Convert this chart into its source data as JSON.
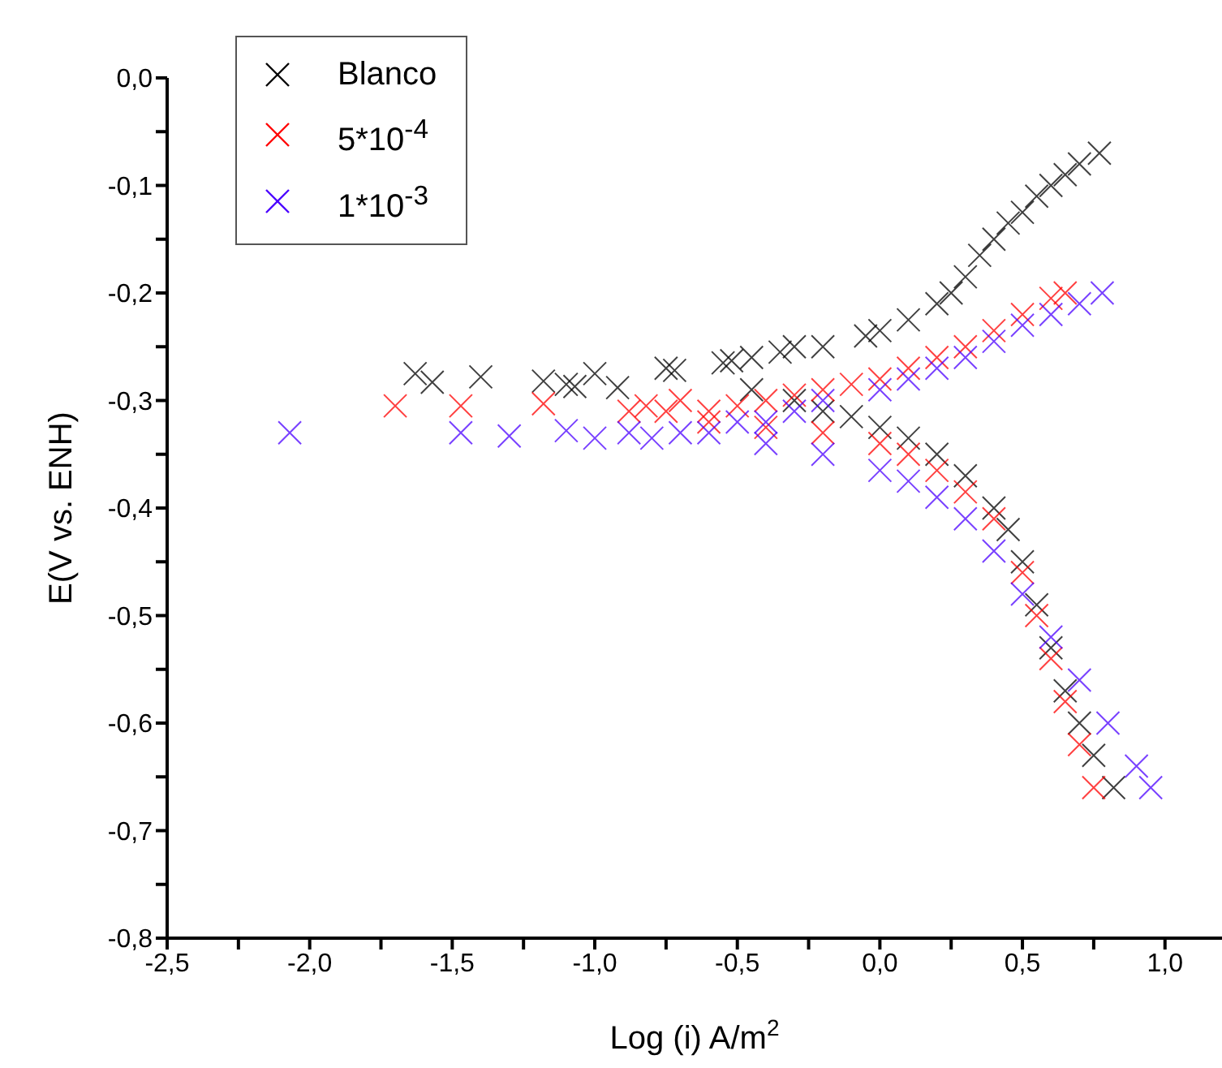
{
  "chart_data": {
    "type": "scatter",
    "xlabel": "Log (i) A/m$^{2}$",
    "ylabel": "E(V vs. ENH)",
    "xlim": [
      -2.5,
      1.2
    ],
    "ylim": [
      -0.8,
      0.0
    ],
    "xticks": [
      {
        "value": -2.5,
        "label": "-2,5"
      },
      {
        "value": -2.25,
        "label": null
      },
      {
        "value": -2.0,
        "label": "-2,0"
      },
      {
        "value": -1.75,
        "label": null
      },
      {
        "value": -1.5,
        "label": "-1,5"
      },
      {
        "value": -1.25,
        "label": null
      },
      {
        "value": -1.0,
        "label": "-1,0"
      },
      {
        "value": -0.75,
        "label": null
      },
      {
        "value": -0.5,
        "label": "-0,5"
      },
      {
        "value": -0.25,
        "label": null
      },
      {
        "value": 0.0,
        "label": "0,0"
      },
      {
        "value": 0.25,
        "label": null
      },
      {
        "value": 0.5,
        "label": "0,5"
      },
      {
        "value": 0.75,
        "label": null
      },
      {
        "value": 1.0,
        "label": "1,0"
      }
    ],
    "yticks": [
      {
        "value": -0.8,
        "label": "-0,8"
      },
      {
        "value": -0.75,
        "label": null
      },
      {
        "value": -0.7,
        "label": "-0,7"
      },
      {
        "value": -0.65,
        "label": null
      },
      {
        "value": -0.6,
        "label": "-0,6"
      },
      {
        "value": -0.55,
        "label": null
      },
      {
        "value": -0.5,
        "label": "-0,5"
      },
      {
        "value": -0.45,
        "label": null
      },
      {
        "value": -0.4,
        "label": "-0,4"
      },
      {
        "value": -0.35,
        "label": null
      },
      {
        "value": -0.3,
        "label": "-0,3"
      },
      {
        "value": -0.25,
        "label": null
      },
      {
        "value": -0.2,
        "label": "-0,2"
      },
      {
        "value": -0.15,
        "label": null
      },
      {
        "value": -0.1,
        "label": "-0,1"
      },
      {
        "value": -0.05,
        "label": null
      },
      {
        "value": 0.0,
        "label": "0,0"
      }
    ],
    "grid": false,
    "legend": "top left",
    "marker": "cross",
    "series": [
      {
        "name": "Blanco",
        "color": "#000000",
        "x": [
          -1.63,
          -1.57,
          -1.4,
          -1.18,
          -1.1,
          -1.07,
          -1.0,
          -0.92,
          -0.75,
          -0.72,
          -0.55,
          -0.52,
          -0.45,
          -0.35,
          -0.3,
          -0.2,
          -0.05,
          0.0,
          0.1,
          0.2,
          0.25,
          0.3,
          0.35,
          0.4,
          0.45,
          0.5,
          0.55,
          0.6,
          0.65,
          0.7,
          0.77,
          -0.45,
          -0.3,
          -0.2,
          -0.1,
          0.0,
          0.1,
          0.2,
          0.3,
          0.4,
          0.45,
          0.5,
          0.55,
          0.6,
          0.65,
          0.7,
          0.75,
          0.82
        ],
        "values": [
          -0.275,
          -0.283,
          -0.278,
          -0.282,
          -0.285,
          -0.287,
          -0.275,
          -0.288,
          -0.27,
          -0.272,
          -0.265,
          -0.263,
          -0.26,
          -0.255,
          -0.25,
          -0.25,
          -0.24,
          -0.235,
          -0.225,
          -0.21,
          -0.2,
          -0.185,
          -0.165,
          -0.15,
          -0.135,
          -0.125,
          -0.11,
          -0.1,
          -0.09,
          -0.08,
          -0.07,
          -0.29,
          -0.3,
          -0.31,
          -0.315,
          -0.325,
          -0.335,
          -0.35,
          -0.37,
          -0.4,
          -0.42,
          -0.45,
          -0.49,
          -0.53,
          -0.57,
          -0.6,
          -0.63,
          -0.66
        ]
      },
      {
        "name": "5*10$^{-4}$",
        "color": "#ff0000",
        "x": [
          -1.7,
          -1.47,
          -1.18,
          -0.88,
          -0.82,
          -0.75,
          -0.7,
          -0.6,
          -0.5,
          -0.4,
          -0.3,
          -0.2,
          -0.1,
          0.0,
          0.1,
          0.2,
          0.3,
          0.4,
          0.5,
          0.6,
          0.65,
          -0.6,
          -0.4,
          -0.2,
          0.0,
          0.1,
          0.2,
          0.3,
          0.4,
          0.5,
          0.55,
          0.6,
          0.65,
          0.7,
          0.75
        ],
        "values": [
          -0.305,
          -0.305,
          -0.303,
          -0.31,
          -0.305,
          -0.31,
          -0.3,
          -0.31,
          -0.305,
          -0.3,
          -0.295,
          -0.29,
          -0.285,
          -0.28,
          -0.27,
          -0.26,
          -0.25,
          -0.235,
          -0.22,
          -0.205,
          -0.2,
          -0.32,
          -0.325,
          -0.33,
          -0.34,
          -0.35,
          -0.365,
          -0.385,
          -0.41,
          -0.46,
          -0.5,
          -0.54,
          -0.58,
          -0.62,
          -0.66
        ]
      },
      {
        "name": "1*10$^{-3}$",
        "color": "#4b00ff",
        "x": [
          -2.07,
          -1.47,
          -1.3,
          -1.1,
          -1.0,
          -0.88,
          -0.8,
          -0.7,
          -0.6,
          -0.5,
          -0.4,
          -0.3,
          -0.2,
          0.0,
          0.1,
          0.2,
          0.3,
          0.4,
          0.5,
          0.6,
          0.7,
          0.78,
          -0.4,
          -0.2,
          0.0,
          0.1,
          0.2,
          0.3,
          0.4,
          0.5,
          0.6,
          0.7,
          0.8,
          0.9,
          0.95
        ],
        "values": [
          -0.33,
          -0.33,
          -0.333,
          -0.328,
          -0.335,
          -0.33,
          -0.335,
          -0.33,
          -0.33,
          -0.32,
          -0.32,
          -0.31,
          -0.3,
          -0.29,
          -0.28,
          -0.27,
          -0.26,
          -0.245,
          -0.23,
          -0.22,
          -0.21,
          -0.2,
          -0.34,
          -0.35,
          -0.365,
          -0.375,
          -0.39,
          -0.41,
          -0.44,
          -0.48,
          -0.52,
          -0.56,
          -0.6,
          -0.64,
          -0.66
        ]
      }
    ]
  }
}
